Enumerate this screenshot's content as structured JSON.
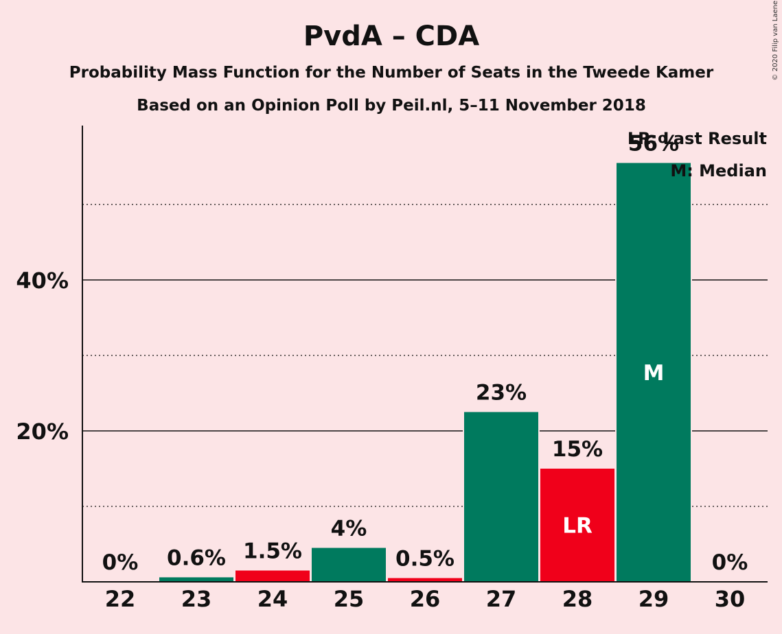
{
  "chart_data": {
    "type": "bar",
    "title": "PvdA – CDA",
    "subtitle_1": "Probability Mass Function for the Number of Seats in the Tweede Kamer",
    "subtitle_2": "Based on an Opinion Poll by Peil.nl, 5–11 November 2018",
    "copyright": "© 2020 Filip van Laenen",
    "categories": [
      "22",
      "23",
      "24",
      "25",
      "26",
      "27",
      "28",
      "29",
      "30"
    ],
    "values": [
      0,
      0.6,
      1.5,
      4.5,
      0.5,
      22.5,
      15.0,
      55.5,
      0
    ],
    "labels": [
      "0%",
      "0.6%",
      "1.5%",
      "4%",
      "0.5%",
      "23%",
      "15%",
      "56%",
      "0%"
    ],
    "bar_colors": [
      "#007a5e",
      "#007a5e",
      "#f0001a",
      "#007a5e",
      "#f0001a",
      "#007a5e",
      "#f0001a",
      "#007a5e",
      "#007a5e"
    ],
    "inner_labels": [
      "",
      "",
      "",
      "",
      "",
      "",
      "LR",
      "M",
      ""
    ],
    "y_ticks": [
      20,
      40
    ],
    "y_tick_labels": [
      "20%",
      "40%"
    ],
    "y_minor_ticks": [
      10,
      30,
      50
    ],
    "ylim": [
      0,
      60
    ],
    "legend": [
      "LR: Last Result",
      "M: Median"
    ],
    "legend_position": "top-right",
    "grid": true
  }
}
